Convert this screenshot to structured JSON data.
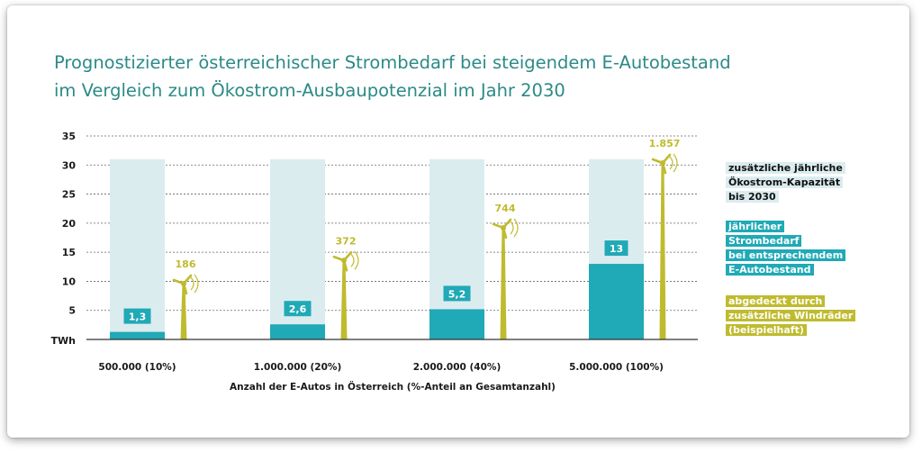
{
  "title_lines": [
    "Prognostizierter österreichischer Strombedarf bei steigendem E-Autobestand",
    "im Vergleich zum Ökostrom-Ausbaupotenzial im Jahr 2030"
  ],
  "legend": {
    "capacity": [
      "zusätzliche jährliche",
      "Ökostrom-Kapazität",
      "bis 2030"
    ],
    "demand": [
      "jährlicher",
      "Strombedarf",
      "bei entsprechendem",
      "E-Autobestand"
    ],
    "wind": [
      "abgedeckt durch",
      "zusätzliche Windräder",
      "(beispielhaft)"
    ]
  },
  "colors": {
    "capacity": "#dbecef",
    "demand": "#20a9b6",
    "wind": "#bfbb2e",
    "title": "#2c8a87",
    "grid": "#666666"
  },
  "chart_data": {
    "type": "bar",
    "ylabel": "TWh",
    "xlabel": "Anzahl der E-Autos in Österreich (%-Anteil an Gesamtanzahl)",
    "ylim": [
      0,
      35
    ],
    "yticks": [
      5,
      10,
      15,
      20,
      25,
      30,
      35
    ],
    "grid": true,
    "categories": [
      "500.000 (10%)",
      "1.000.000 (20%)",
      "2.000.000 (40%)",
      "5.000.000 (100%)"
    ],
    "series": [
      {
        "key": "capacity",
        "values": [
          31,
          31,
          31,
          31
        ]
      },
      {
        "key": "demand",
        "values": [
          1.3,
          2.6,
          5.2,
          13
        ],
        "labels": [
          "1,3",
          "2,6",
          "5,2",
          "13"
        ]
      },
      {
        "key": "wind",
        "values": [
          186,
          372,
          744,
          1857
        ],
        "labels": [
          "186",
          "372",
          "744",
          "1.857"
        ]
      }
    ]
  }
}
